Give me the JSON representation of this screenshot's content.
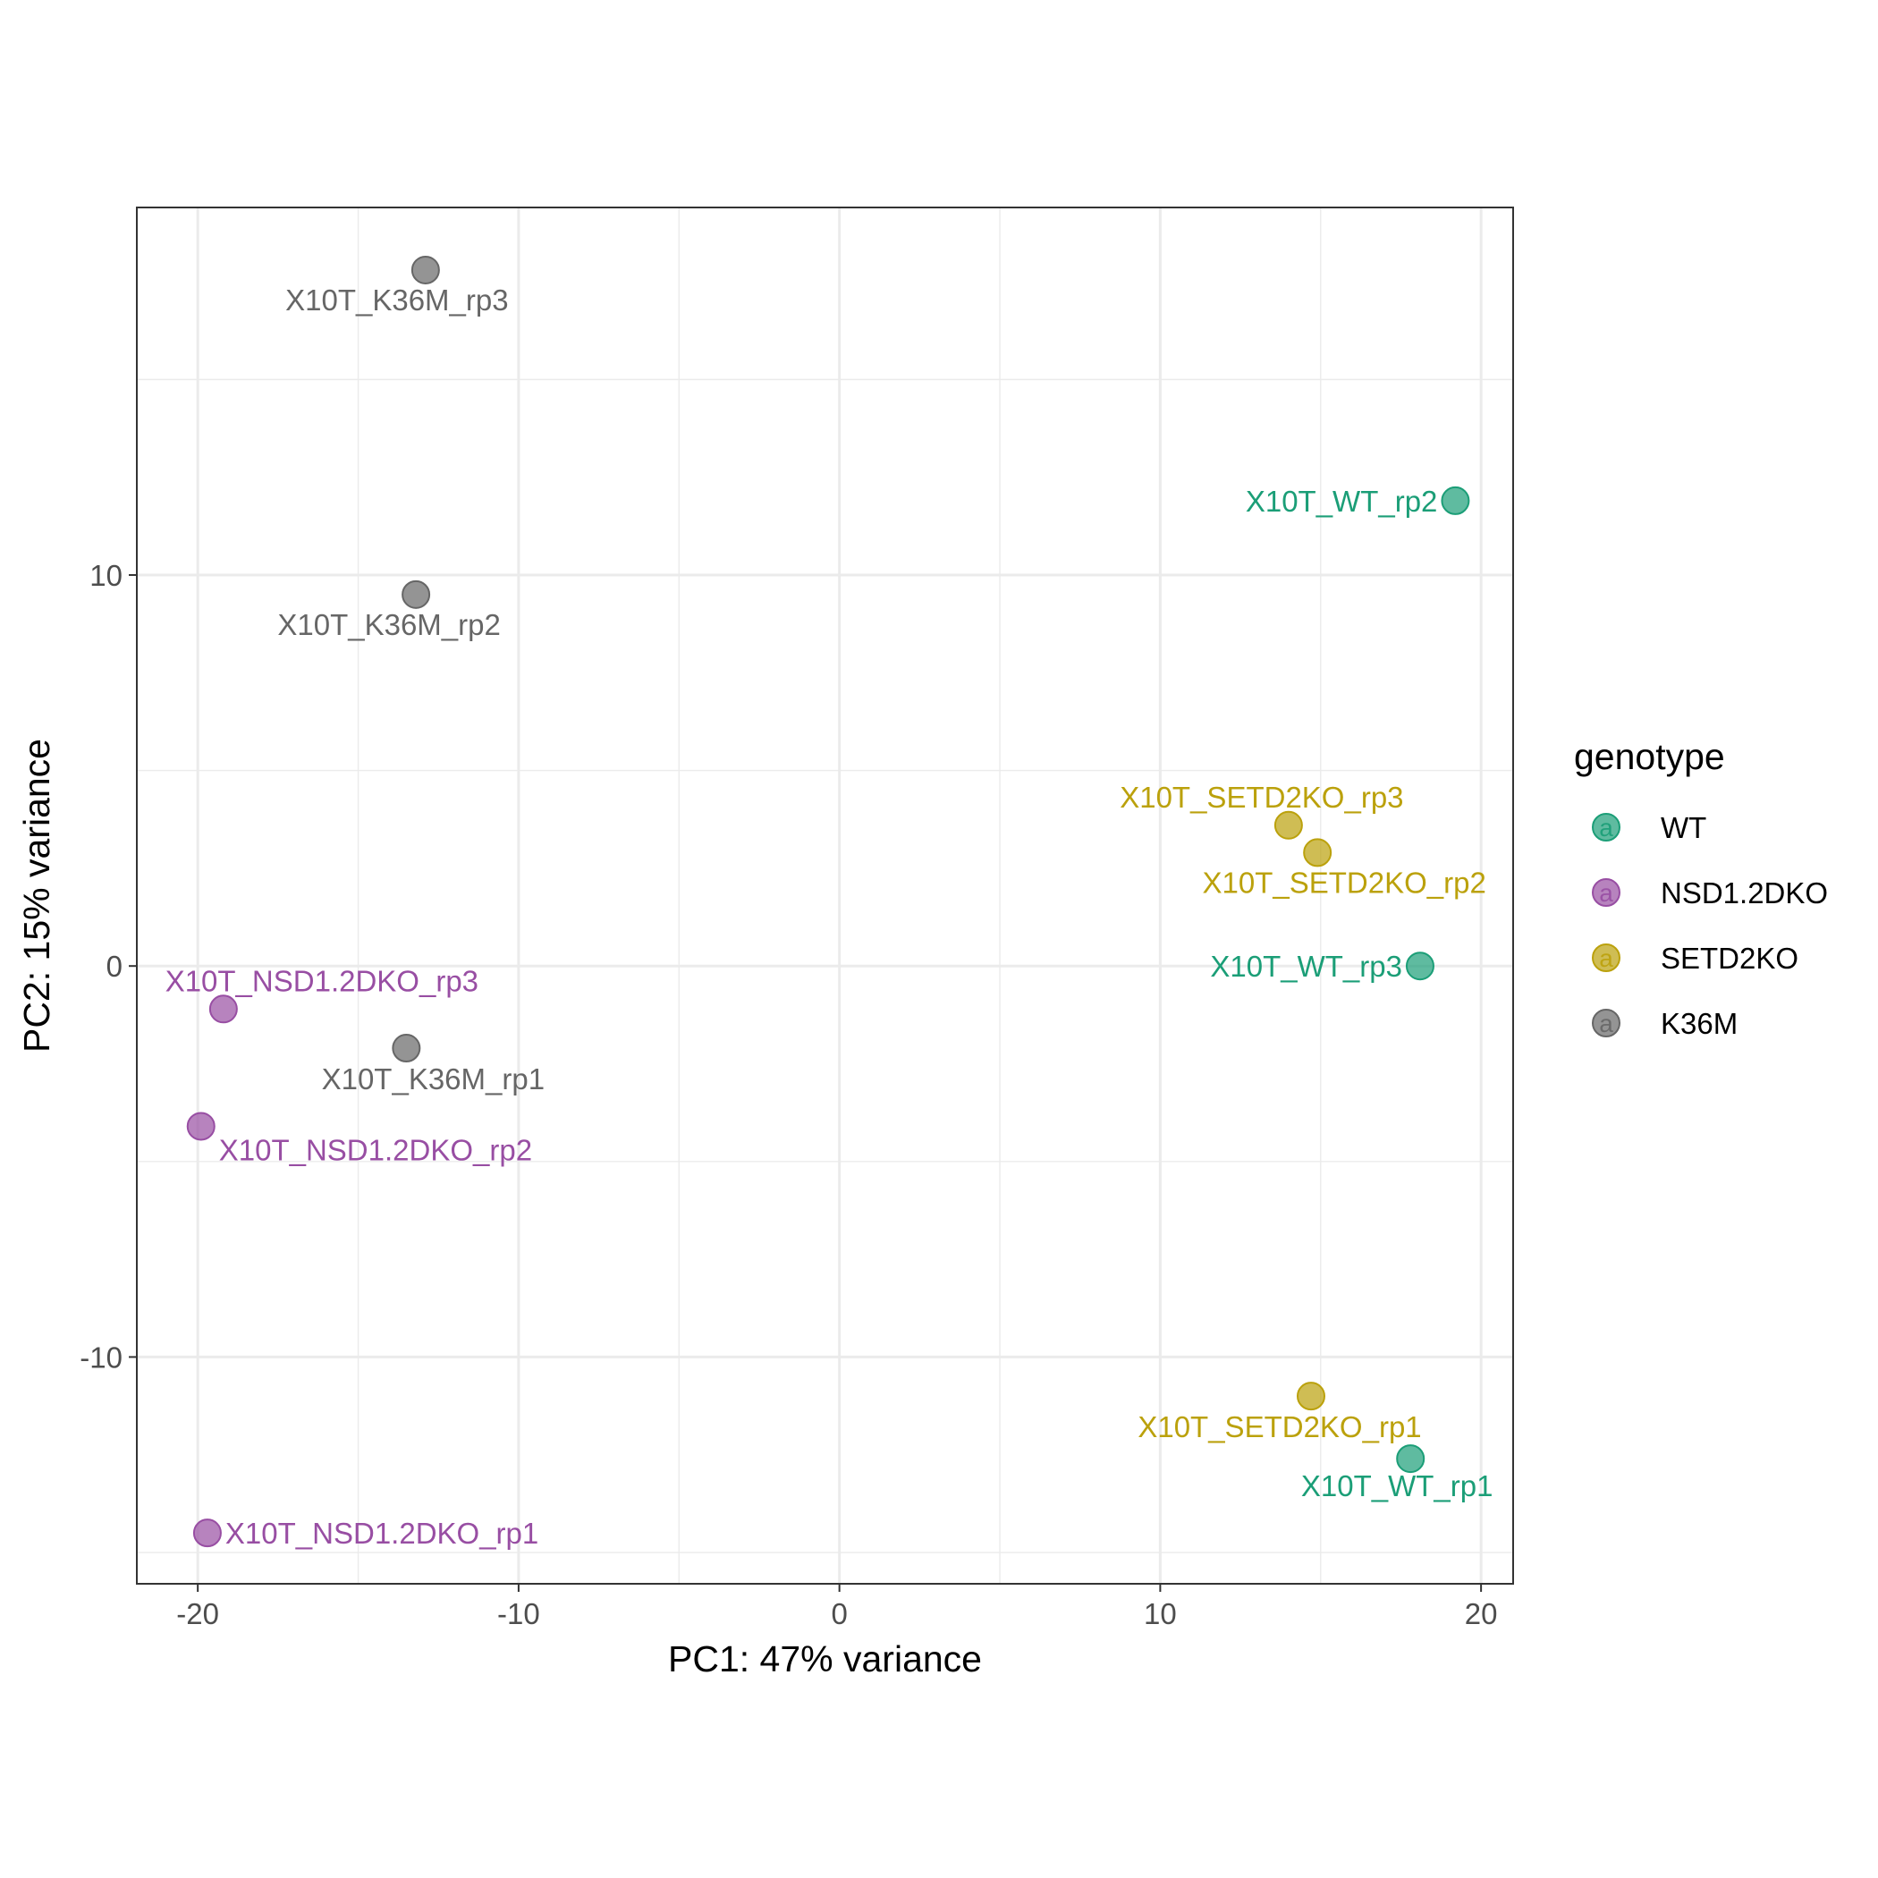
{
  "chart_data": {
    "type": "scatter",
    "title": "",
    "xlabel": "PC1: 47% variance",
    "ylabel": "PC2: 15% variance",
    "xlim": [
      -21.9,
      21.0
    ],
    "ylim": [
      -15.8,
      19.4
    ],
    "x_ticks": [
      -20,
      -10,
      0,
      10,
      20
    ],
    "x_tick_labels": [
      "-20",
      "-10",
      "0",
      "10",
      "20"
    ],
    "y_ticks": [
      -10,
      0,
      10
    ],
    "y_tick_labels": [
      "-10",
      "0",
      "10"
    ],
    "grid": true,
    "legend": {
      "title": "genotype",
      "position": "right",
      "key_glyph": "a"
    },
    "colors": {
      "WT": "#1b9e77",
      "NSD1.2DKO": "#984ea3",
      "SETD2KO": "#bba10c",
      "K36M": "#666666"
    },
    "series": [
      {
        "name": "WT",
        "points": [
          {
            "label": "X10T_WT_rp1",
            "x": 17.8,
            "y": -12.6
          },
          {
            "label": "X10T_WT_rp2",
            "x": 19.2,
            "y": 11.9
          },
          {
            "label": "X10T_WT_rp3",
            "x": 18.1,
            "y": 0.0
          }
        ]
      },
      {
        "name": "NSD1.2DKO",
        "points": [
          {
            "label": "X10T_NSD1.2DKO_rp1",
            "x": -19.7,
            "y": -14.5
          },
          {
            "label": "X10T_NSD1.2DKO_rp2",
            "x": -19.9,
            "y": -4.1
          },
          {
            "label": "X10T_NSD1.2DKO_rp3",
            "x": -19.2,
            "y": -1.1
          }
        ]
      },
      {
        "name": "SETD2KO",
        "points": [
          {
            "label": "X10T_SETD2KO_rp1",
            "x": 14.7,
            "y": -11.0
          },
          {
            "label": "X10T_SETD2KO_rp2",
            "x": 14.9,
            "y": 2.9
          },
          {
            "label": "X10T_SETD2KO_rp3",
            "x": 14.0,
            "y": 3.6
          }
        ]
      },
      {
        "name": "K36M",
        "points": [
          {
            "label": "X10T_K36M_rp1",
            "x": -13.5,
            "y": -2.1
          },
          {
            "label": "X10T_K36M_rp2",
            "x": -13.2,
            "y": 9.5
          },
          {
            "label": "X10T_K36M_rp3",
            "x": -12.9,
            "y": 17.8
          }
        ]
      }
    ]
  }
}
